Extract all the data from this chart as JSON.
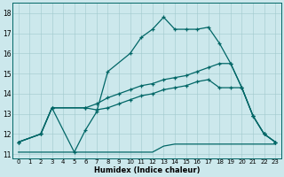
{
  "title": "",
  "xlabel": "Humidex (Indice chaleur)",
  "bg_color": "#cce8ec",
  "line_color": "#006666",
  "xlim": [
    -0.5,
    23.5
  ],
  "ylim": [
    10.8,
    18.5
  ],
  "yticks": [
    11,
    12,
    13,
    14,
    15,
    16,
    17,
    18
  ],
  "xticks": [
    0,
    1,
    2,
    3,
    4,
    5,
    6,
    7,
    8,
    9,
    10,
    11,
    12,
    13,
    14,
    15,
    16,
    17,
    18,
    19,
    20,
    21,
    22,
    23
  ],
  "curve1_x": [
    0,
    2,
    3,
    5,
    6,
    7,
    8,
    10,
    11,
    12,
    13,
    14,
    15,
    16,
    17,
    18,
    19,
    20,
    21,
    22,
    23
  ],
  "curve1_y": [
    11.6,
    12.0,
    13.3,
    11.1,
    12.2,
    13.1,
    15.1,
    16.0,
    16.8,
    17.2,
    17.8,
    17.2,
    17.2,
    17.2,
    17.3,
    16.5,
    15.5,
    14.3,
    12.9,
    12.0,
    11.6
  ],
  "curve2_x": [
    0,
    2,
    3,
    6,
    7,
    8,
    9,
    10,
    11,
    12,
    13,
    14,
    15,
    16,
    17,
    18,
    19,
    20,
    21,
    22,
    23
  ],
  "curve2_y": [
    11.6,
    12.0,
    13.3,
    13.3,
    13.5,
    13.8,
    14.0,
    14.2,
    14.4,
    14.5,
    14.7,
    14.8,
    14.9,
    15.1,
    15.3,
    15.5,
    15.5,
    14.3,
    12.9,
    12.0,
    11.6
  ],
  "curve3_x": [
    0,
    2,
    3,
    6,
    7,
    8,
    9,
    10,
    11,
    12,
    13,
    14,
    15,
    16,
    17,
    18,
    19,
    20,
    21,
    22,
    23
  ],
  "curve3_y": [
    11.6,
    12.0,
    13.3,
    13.3,
    13.2,
    13.3,
    13.5,
    13.7,
    13.9,
    14.0,
    14.2,
    14.3,
    14.4,
    14.6,
    14.7,
    14.3,
    14.3,
    14.3,
    12.9,
    12.0,
    11.6
  ],
  "curve4_x": [
    0,
    1,
    5,
    6,
    7,
    8,
    9,
    10,
    11,
    12,
    13,
    14,
    15,
    16,
    17,
    18,
    19,
    20,
    21,
    22,
    23
  ],
  "curve4_y": [
    11.1,
    11.1,
    11.1,
    11.1,
    11.1,
    11.1,
    11.1,
    11.1,
    11.1,
    11.1,
    11.4,
    11.5,
    11.5,
    11.5,
    11.5,
    11.5,
    11.5,
    11.5,
    11.5,
    11.5,
    11.5
  ]
}
